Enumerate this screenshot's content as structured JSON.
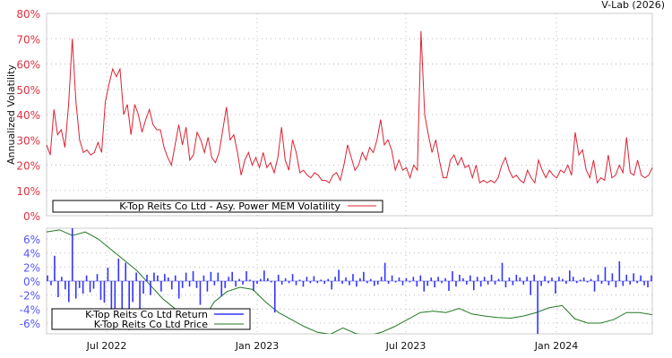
{
  "credit": "V-Lab (2026)",
  "chart_data": [
    {
      "type": "line",
      "ylabel": "Annualized Volatility",
      "ylim": [
        0,
        80
      ],
      "yticks": [
        "0%",
        "10%",
        "20%",
        "30%",
        "40%",
        "50%",
        "60%",
        "70%",
        "80%"
      ],
      "xrange": [
        "2022-04",
        "2024-04"
      ],
      "xticks": [
        "Jul 2022",
        "Jan 2023",
        "Jul 2023",
        "Jan 2024"
      ],
      "grid": true,
      "legend": {
        "position": "bottom",
        "entries": [
          "K-Top Reits Co Ltd - Asy. Power MEM Volatility"
        ]
      },
      "series": [
        {
          "name": "K-Top Reits Co Ltd - Asy. Power MEM Volatility",
          "color": "#dd2233",
          "values": [
            28,
            24,
            42,
            32,
            34,
            27,
            44,
            70,
            45,
            30,
            25,
            26,
            24,
            25,
            29,
            25,
            45,
            52,
            58,
            55,
            58,
            40,
            44,
            32,
            44,
            40,
            33,
            38,
            42,
            36,
            34,
            34,
            27,
            23,
            20,
            28,
            36,
            28,
            35,
            22,
            24,
            33,
            30,
            25,
            31,
            23,
            21,
            25,
            34,
            43,
            30,
            32,
            25,
            16,
            22,
            25,
            20,
            23,
            19,
            25,
            19,
            21,
            17,
            23,
            35,
            22,
            18,
            30,
            25,
            17,
            18,
            16,
            15,
            17,
            16,
            14,
            14,
            13,
            16,
            17,
            14,
            20,
            28,
            23,
            18,
            20,
            25,
            22,
            27,
            25,
            30,
            38,
            28,
            30,
            26,
            18,
            22,
            18,
            19,
            15,
            20,
            18,
            73,
            40,
            32,
            25,
            30,
            22,
            15,
            15,
            22,
            24,
            20,
            23,
            19,
            20,
            15,
            20,
            13,
            14,
            13,
            14,
            13,
            15,
            20,
            23,
            18,
            15,
            16,
            14,
            13,
            18,
            15,
            13,
            22,
            18,
            15,
            18,
            16,
            15,
            18,
            17,
            20,
            16,
            33,
            24,
            26,
            18,
            15,
            22,
            13,
            15,
            14,
            24,
            15,
            16,
            20,
            17,
            31,
            17,
            16,
            22,
            16,
            15,
            16,
            19
          ]
        }
      ]
    },
    {
      "type": "bar",
      "ylim": [
        -7.8,
        7.8
      ],
      "yticks": [
        "-6%",
        "-4%",
        "-2%",
        "0%",
        "2%",
        "4%",
        "6%"
      ],
      "xrange": [
        "2022-04",
        "2024-04"
      ],
      "xticks": [
        "Jul 2022",
        "Jan 2023",
        "Jul 2023",
        "Jan 2024"
      ],
      "grid": true,
      "legend": {
        "position": "bottom-left",
        "entries": [
          "K-Top Reits Co Ltd Return",
          "K-Top Reits Co Ltd Price"
        ]
      },
      "series": [
        {
          "name": "K-Top Reits Co Ltd Return",
          "color": "#3333ff",
          "values": [
            0.8,
            -0.6,
            3.6,
            -2.3,
            0.6,
            -1.2,
            -3,
            7.8,
            -2.5,
            -1,
            -1.8,
            0.8,
            -1.6,
            -1.1,
            1,
            -2.7,
            -3.1,
            1.9,
            -4.8,
            -6.8,
            3.2,
            -5.5,
            2.6,
            -7,
            -3,
            1.2,
            -6,
            -1.8,
            0.9,
            -2,
            1.2,
            0.8,
            -1.5,
            1,
            0.5,
            -1.2,
            0.8,
            -2.5,
            -1,
            1.2,
            -0.8,
            1.4,
            -1,
            -3.4,
            0.8,
            -1.5,
            1.3,
            -0.6,
            1.2,
            -2.2,
            -1,
            0.6,
            1.3,
            -0.8,
            0.3,
            -0.5,
            1.4,
            0.2,
            -1.4,
            -0.4,
            0.3,
            1.5,
            0.4,
            -0.2,
            -4.5,
            0.9,
            -0.5,
            0.4,
            -0.3,
            1,
            -0.6,
            0.2,
            -0.8,
            0.6,
            -0.3,
            0.7,
            -0.3,
            0.2,
            -0.4,
            0.3,
            -1.2,
            0.6,
            1.6,
            -0.4,
            0.5,
            -0.6,
            1,
            -0.8,
            0.4,
            1.3,
            -0.3,
            0.3,
            -0.7,
            -0.5,
            0.6,
            2.6,
            -0.4,
            0.8,
            -0.2,
            0.5,
            -0.6,
            0.4,
            -0.2,
            0.6,
            -0.8,
            0.8,
            -1.5,
            -0.7,
            0.5,
            -0.9,
            0.6,
            -0.3,
            0.4,
            -1.4,
            1.4,
            -0.8,
            0.9,
            0.4,
            -0.5,
            0.8,
            -1.3,
            0.6,
            -0.8,
            0.6,
            -0.5,
            0.9,
            -0.5,
            0.3,
            2.6,
            -0.9,
            0.5,
            -0.6,
            0.9,
            0.5,
            -0.5,
            0.6,
            -2,
            0.9,
            -8,
            -0.7,
            0.7,
            -0.3,
            0.5,
            -1.8,
            0.6,
            0.3,
            -0.4,
            1.5,
            0.6,
            -0.3,
            0.2,
            0.5,
            -0.2,
            0.3,
            -1.5,
            0.9,
            -0.4,
            2,
            -0.6,
            1.1,
            -0.9,
            2.8,
            -0.7,
            0.9,
            -0.5,
            1.1,
            -0.3,
            0.8,
            -0.6,
            -0.9,
            0.8
          ]
        },
        {
          "name": "K-Top Reits Co Ltd Price",
          "color": "#227722",
          "values": [
            7,
            7.3,
            6.5,
            7,
            6,
            4.5,
            3,
            1.5,
            -0.5,
            -2.5,
            -4,
            -5.5,
            -6,
            -3,
            -1.5,
            -0.9,
            -1.2,
            -3,
            -4.5,
            -5.5,
            -6.5,
            -7.3,
            -7.6,
            -6.7,
            -7.5,
            -7.8,
            -7.3,
            -6.5,
            -5.5,
            -4.5,
            -4.3,
            -4.5,
            -3.9,
            -4.7,
            -5,
            -5.2,
            -5.3,
            -5,
            -4.5,
            -3.8,
            -3.5,
            -5.4,
            -6,
            -6,
            -5.5,
            -4.5,
            -4.5,
            -4.8
          ]
        }
      ]
    }
  ]
}
